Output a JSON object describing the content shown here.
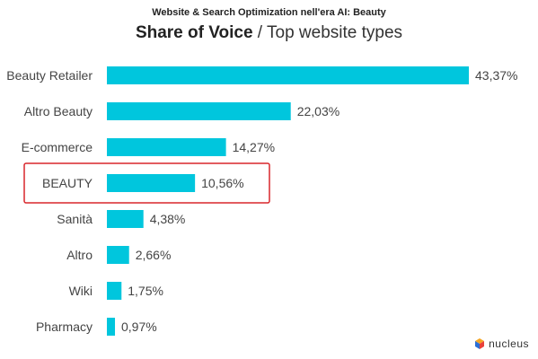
{
  "header": {
    "supertitle": "Website & Search Optimization nell'era AI: Beauty",
    "title_bold": "Share of Voice",
    "title_rest": " / Top website types"
  },
  "brand": {
    "name": "nucleus"
  },
  "colors": {
    "bar": "#00c6dd",
    "highlight": "#d8262b"
  },
  "chart_data": {
    "type": "bar",
    "orientation": "horizontal",
    "title": "Share of Voice / Top website types",
    "categories": [
      "Beauty Retailer",
      "Altro Beauty",
      "E-commerce",
      "BEAUTY",
      "Sanità",
      "Altro",
      "Wiki",
      "Pharmacy"
    ],
    "values": [
      43.37,
      22.03,
      14.27,
      10.56,
      4.38,
      2.66,
      1.75,
      0.97
    ],
    "value_labels": [
      "43,37%",
      "22,03%",
      "14,27%",
      "10,56%",
      "4,38%",
      "2,66%",
      "1,75%",
      "0,97%"
    ],
    "highlighted_category": "BEAUTY",
    "xlim": [
      0,
      43.37
    ],
    "grid": false,
    "legend": "none"
  }
}
